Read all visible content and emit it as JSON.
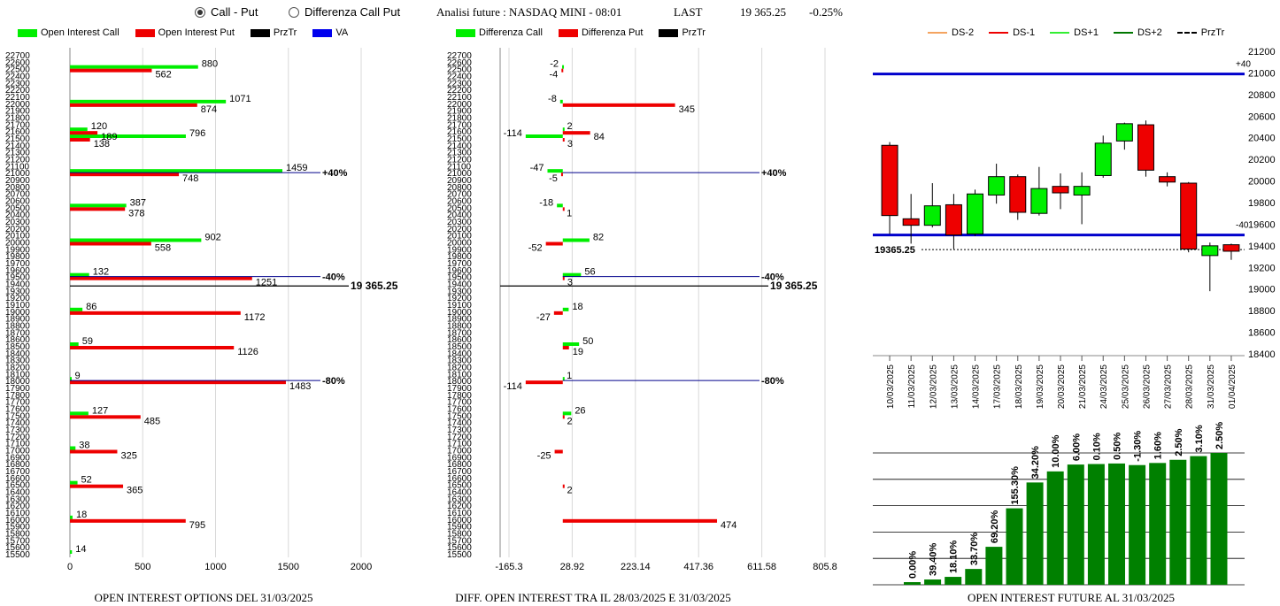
{
  "controls": {
    "radio_call_put": "Call - Put",
    "radio_diff": "Differenza Call Put",
    "info_label": "Analisi future : NASDAQ MINI - 08:01",
    "last_label": "LAST",
    "last_value": "19 365.25",
    "last_change": "-0.25%"
  },
  "legend_left": [
    {
      "label": "Open Interest Call",
      "color": "#00ee00"
    },
    {
      "label": "Open Interest Put",
      "color": "#ee0000"
    },
    {
      "label": "PrzTr",
      "color": "#000000"
    },
    {
      "label": "VA",
      "color": "#0000ee"
    }
  ],
  "legend_mid": [
    {
      "label": "Differenza Call",
      "color": "#00ee00"
    },
    {
      "label": "Differenza Put",
      "color": "#ee0000"
    },
    {
      "label": "PrzTr",
      "color": "#000000"
    }
  ],
  "legend_right": [
    {
      "label": "DS-2",
      "color": "#f4a460",
      "style": "solid"
    },
    {
      "label": "DS-1",
      "color": "#ee0000",
      "style": "solid"
    },
    {
      "label": "DS+1",
      "color": "#33ee33",
      "style": "solid"
    },
    {
      "label": "DS+2",
      "color": "#007700",
      "style": "solid"
    },
    {
      "label": "PrzTr",
      "color": "#000000",
      "style": "dashed"
    }
  ],
  "captions": {
    "left": "OPEN INTEREST OPTIONS DEL 31/03/2025",
    "mid": "DIFF. OPEN INTEREST TRA IL 28/03/2025 E 31/03/2025",
    "right": "OPEN INTEREST FUTURE AL 31/03/2025"
  },
  "chart_data": [
    {
      "type": "bar",
      "orientation": "horizontal",
      "strikes_axis": [
        22700,
        15500
      ],
      "xlim": [
        0,
        2000
      ],
      "xticks": [
        0,
        500,
        1000,
        1500,
        2000
      ],
      "series": [
        {
          "name": "Open Interest Call",
          "color": "#00ee00",
          "points": [
            [
              22500,
              880
            ],
            [
              22000,
              1071
            ],
            [
              21600,
              120
            ],
            [
              21500,
              796
            ],
            [
              21000,
              1459
            ],
            [
              20500,
              387
            ],
            [
              20000,
              902
            ],
            [
              19500,
              132
            ],
            [
              19000,
              86
            ],
            [
              18500,
              59
            ],
            [
              18000,
              9
            ],
            [
              17500,
              127
            ],
            [
              17000,
              38
            ],
            [
              16500,
              52
            ],
            [
              16000,
              18
            ],
            [
              15500,
              14
            ]
          ]
        },
        {
          "name": "Open Interest Put",
          "color": "#ee0000",
          "points": [
            [
              22500,
              562
            ],
            [
              22000,
              874
            ],
            [
              21600,
              189
            ],
            [
              21500,
              138
            ],
            [
              21000,
              748
            ],
            [
              20500,
              378
            ],
            [
              20000,
              558
            ],
            [
              19500,
              1251
            ],
            [
              19000,
              1172
            ],
            [
              18500,
              1126
            ],
            [
              18000,
              1483
            ],
            [
              17500,
              485
            ],
            [
              17000,
              325
            ],
            [
              16500,
              365
            ],
            [
              16000,
              795
            ]
          ]
        }
      ],
      "va_lines": [
        {
          "strike": 21000,
          "label": "+40%"
        },
        {
          "strike": 19500,
          "label": "-40%"
        },
        {
          "strike": 18000,
          "label": "-80%"
        }
      ],
      "przTr": {
        "value": 19365.25,
        "label": "19 365.25"
      }
    },
    {
      "type": "bar",
      "orientation": "horizontal",
      "strikes_axis": [
        22700,
        15500
      ],
      "xlim": [
        -165.3,
        805.8
      ],
      "xticks": [
        -165.3,
        28.92,
        223.14,
        417.36,
        611.58,
        805.8
      ],
      "series": [
        {
          "name": "Differenza Call",
          "color": "#00ee00",
          "points": [
            [
              22500,
              -2
            ],
            [
              22000,
              -8
            ],
            [
              21600,
              2
            ],
            [
              21500,
              -114
            ],
            [
              21000,
              -47
            ],
            [
              20500,
              -18
            ],
            [
              20000,
              82
            ],
            [
              19500,
              56
            ],
            [
              19000,
              18
            ],
            [
              18500,
              50
            ],
            [
              18000,
              1
            ],
            [
              17500,
              26
            ]
          ]
        },
        {
          "name": "Differenza Put",
          "color": "#ee0000",
          "points": [
            [
              22500,
              -4
            ],
            [
              22000,
              345
            ],
            [
              21600,
              84
            ],
            [
              21500,
              3
            ],
            [
              21000,
              -5
            ],
            [
              20500,
              1
            ],
            [
              20000,
              -52
            ],
            [
              19500,
              3
            ],
            [
              19000,
              -27
            ],
            [
              18500,
              19
            ],
            [
              18000,
              -114
            ],
            [
              17500,
              2
            ],
            [
              17000,
              -25
            ],
            [
              16500,
              2
            ],
            [
              16000,
              474
            ]
          ]
        }
      ],
      "va_lines": [
        {
          "strike": 21000,
          "label": "+40%"
        },
        {
          "strike": 19500,
          "label": "-40%"
        },
        {
          "strike": 18000,
          "label": "-80%"
        }
      ],
      "przTr": {
        "value": 19365.25,
        "label": "19 365.25"
      }
    },
    {
      "type": "candlestick",
      "ylim": [
        18400,
        21200
      ],
      "yticks": [
        18400,
        18600,
        18800,
        19000,
        19200,
        19400,
        19600,
        19800,
        20000,
        20200,
        20400,
        20600,
        20800,
        21000,
        21200
      ],
      "categories": [
        "10/03/2025",
        "11/03/2025",
        "12/03/2025",
        "13/03/2025",
        "14/03/2025",
        "17/03/2025",
        "18/03/2025",
        "19/03/2025",
        "20/03/2025",
        "21/03/2025",
        "24/03/2025",
        "25/03/2025",
        "26/03/2025",
        "27/03/2025",
        "28/03/2025",
        "31/03/2025",
        "01/04/2025"
      ],
      "ohlc": [
        {
          "o": 20330,
          "h": 20360,
          "l": 19510,
          "c": 19680
        },
        {
          "o": 19650,
          "h": 19880,
          "l": 19420,
          "c": 19590
        },
        {
          "o": 19590,
          "h": 19980,
          "l": 19570,
          "c": 19770
        },
        {
          "o": 19780,
          "h": 19880,
          "l": 19370,
          "c": 19500
        },
        {
          "o": 19510,
          "h": 19920,
          "l": 19490,
          "c": 19880
        },
        {
          "o": 19870,
          "h": 20160,
          "l": 19790,
          "c": 20040
        },
        {
          "o": 20040,
          "h": 20060,
          "l": 19640,
          "c": 19710
        },
        {
          "o": 19700,
          "h": 20130,
          "l": 19680,
          "c": 19930
        },
        {
          "o": 19950,
          "h": 20070,
          "l": 19740,
          "c": 19890
        },
        {
          "o": 19870,
          "h": 20080,
          "l": 19600,
          "c": 19950
        },
        {
          "o": 20050,
          "h": 20420,
          "l": 20030,
          "c": 20350
        },
        {
          "o": 20370,
          "h": 20540,
          "l": 20290,
          "c": 20530
        },
        {
          "o": 20520,
          "h": 20560,
          "l": 20040,
          "c": 20100
        },
        {
          "o": 20040,
          "h": 20080,
          "l": 19950,
          "c": 19990
        },
        {
          "o": 19980,
          "h": 19990,
          "l": 19340,
          "c": 19370
        },
        {
          "o": 19310,
          "h": 19430,
          "l": 18980,
          "c": 19400
        },
        {
          "o": 19410,
          "h": 19420,
          "l": 19270,
          "c": 19350
        }
      ],
      "va_lines": [
        {
          "value": 20990,
          "label": "+40",
          "color": "#0000cc"
        },
        {
          "value": 19500,
          "label": "-40",
          "color": "#0000cc"
        }
      ],
      "przTr": {
        "value": 19365.25,
        "label": "19365.25"
      }
    },
    {
      "type": "bar",
      "values": [
        0.5,
        1.0,
        1.5,
        3.0,
        7.2,
        14.5,
        19.4,
        21.5,
        22.8,
        22.9,
        23.0,
        22.7,
        23.1,
        23.7,
        24.4,
        25.0
      ],
      "labels": [
        "0.00%",
        "39.40%",
        "18.10%",
        "33.70%",
        "69.20%",
        "155.30%",
        "34.20%",
        "10.00%",
        "6.00%",
        "0.10%",
        "0.50%",
        "-1.30%",
        "1.60%",
        "2.50%",
        "3.10%",
        "2.50%"
      ],
      "ylim": [
        0,
        25
      ],
      "color": "#008000"
    }
  ]
}
